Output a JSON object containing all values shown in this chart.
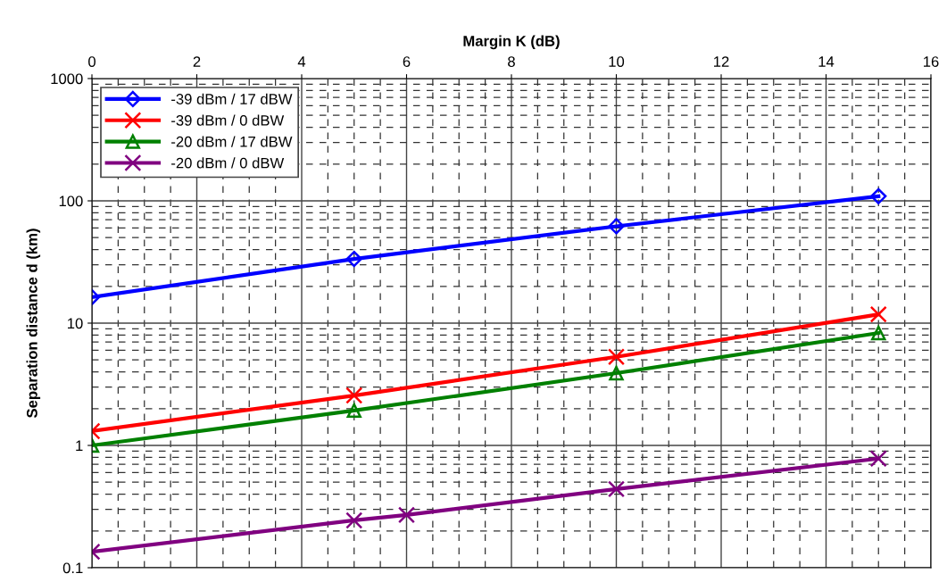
{
  "chart_data": {
    "type": "line",
    "xlabel": "Margin K (dB)",
    "ylabel": "Separation distance d (km)",
    "log": "y",
    "xlim": [
      0,
      16
    ],
    "xticks": [
      0,
      2,
      4,
      6,
      8,
      10,
      12,
      14,
      16
    ],
    "ylim": [
      0.1,
      1000
    ],
    "yticks": [
      0.1,
      1,
      10,
      100,
      1000
    ],
    "grid": true,
    "legend": "top left",
    "series": [
      {
        "name": "-39 dBm / 17 dBW",
        "color": "#0000ff",
        "marker": "diamond",
        "x": [
          0,
          5,
          10,
          15
        ],
        "values": [
          16.3,
          33.5,
          62,
          109
        ]
      },
      {
        "name": "-39 dBm / 0 dBW",
        "color": "#ff0000",
        "marker": "cross",
        "x": [
          0,
          5,
          10,
          15
        ],
        "values": [
          1.31,
          2.56,
          5.3,
          11.8
        ]
      },
      {
        "name": "-20 dBm / 17 dBW",
        "color": "#008000",
        "marker": "triangle",
        "x": [
          0,
          5,
          10,
          15
        ],
        "values": [
          1.0,
          1.93,
          3.9,
          8.3
        ]
      },
      {
        "name": "-20 dBm / 0 dBW",
        "color": "#800080",
        "marker": "cross",
        "x": [
          0,
          5,
          6,
          10,
          15
        ],
        "values": [
          0.135,
          0.244,
          0.27,
          0.44,
          0.78
        ]
      }
    ]
  }
}
